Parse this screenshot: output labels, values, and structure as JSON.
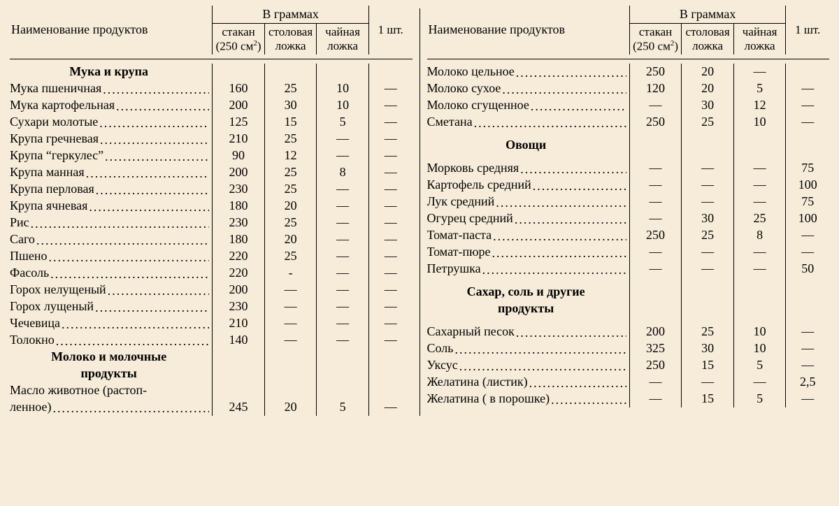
{
  "header": {
    "title_left": "Наименование продуктов",
    "group": "В граммах",
    "col1_line1": "стакан",
    "col1_line2": "(250 см",
    "col1_sup": "2",
    "col1_paren": ")",
    "col2_line1": "столовая",
    "col2_line2": "ложка",
    "col3_line1": "чайная",
    "col3_line2": "ложка",
    "col4": "1 шт."
  },
  "left": [
    {
      "type": "section",
      "label": "Мука и крупа"
    },
    {
      "type": "row",
      "label": "Мука пшеничная",
      "v": [
        "160",
        "25",
        "10",
        "—"
      ]
    },
    {
      "type": "row",
      "label": "Мука картофельная",
      "v": [
        "200",
        "30",
        "10",
        "—"
      ]
    },
    {
      "type": "row",
      "label": "Сухари молотые",
      "v": [
        "125",
        "15",
        "5",
        "—"
      ]
    },
    {
      "type": "row",
      "label": "Крупа гречневая",
      "v": [
        "210",
        "25",
        "—",
        "—"
      ]
    },
    {
      "type": "row",
      "label": "Крупа “геркулес”",
      "v": [
        "90",
        "12",
        "—",
        "—"
      ]
    },
    {
      "type": "row",
      "label": "Крупа манная",
      "v": [
        "200",
        "25",
        "8",
        "—"
      ]
    },
    {
      "type": "row",
      "label": "Крупа перловая",
      "v": [
        "230",
        "25",
        "—",
        "—"
      ]
    },
    {
      "type": "row",
      "label": "Крупа ячневая",
      "v": [
        "180",
        "20",
        "—",
        "—"
      ]
    },
    {
      "type": "row",
      "label": "Рис",
      "v": [
        "230",
        "25",
        "—",
        "—"
      ]
    },
    {
      "type": "row",
      "label": "Саго",
      "v": [
        "180",
        "20",
        "—",
        "—"
      ]
    },
    {
      "type": "row",
      "label": "Пшено",
      "v": [
        "220",
        "25",
        "—",
        "—"
      ]
    },
    {
      "type": "row",
      "label": "Фасоль",
      "v": [
        "220",
        "-",
        "—",
        "—"
      ]
    },
    {
      "type": "row",
      "label": "Горох нелущеный",
      "v": [
        "200",
        "—",
        "—",
        "—"
      ]
    },
    {
      "type": "row",
      "label": "Горох лущеный",
      "v": [
        "230",
        "—",
        "—",
        "—"
      ]
    },
    {
      "type": "row",
      "label": "Чечевица",
      "v": [
        "210",
        "—",
        "—",
        "—"
      ]
    },
    {
      "type": "row",
      "label": "Толокно",
      "v": [
        "140",
        "—",
        "—",
        "—"
      ]
    },
    {
      "type": "section",
      "label": "Молоко и молочные"
    },
    {
      "type": "section",
      "label": "продукты"
    },
    {
      "type": "row-nodots",
      "label": "Масло животное (растоп-",
      "v": [
        "",
        "",
        "",
        ""
      ]
    },
    {
      "type": "row",
      "label": "ленное)",
      "v": [
        "245",
        "20",
        "5",
        "—"
      ]
    }
  ],
  "right": [
    {
      "type": "row",
      "label": "Молоко цельное",
      "v": [
        "250",
        "20",
        "—",
        ""
      ]
    },
    {
      "type": "row",
      "label": "Молоко сухое",
      "v": [
        "120",
        "20",
        "5",
        "—"
      ]
    },
    {
      "type": "row",
      "label": "Молоко сгущенное",
      "v": [
        "—",
        "30",
        "12",
        "—"
      ]
    },
    {
      "type": "row",
      "label": "Сметана",
      "v": [
        "250",
        "25",
        "10",
        "—"
      ]
    },
    {
      "type": "spacer"
    },
    {
      "type": "section",
      "label": "Овощи"
    },
    {
      "type": "spacer"
    },
    {
      "type": "row",
      "label": "Морковь средняя",
      "v": [
        "—",
        "—",
        "—",
        "75"
      ]
    },
    {
      "type": "row",
      "label": "Картофель средний",
      "v": [
        "—",
        "—",
        "—",
        "100"
      ]
    },
    {
      "type": "row",
      "label": "Лук средний",
      "v": [
        "—",
        "—",
        "—",
        "75"
      ]
    },
    {
      "type": "row",
      "label": "Огурец средний",
      "v": [
        "—",
        "30",
        "25",
        "100"
      ]
    },
    {
      "type": "row",
      "label": "Томат-паста",
      "v": [
        "250",
        "25",
        "8",
        "—"
      ]
    },
    {
      "type": "row",
      "label": "Томат-пюре",
      "v": [
        "—",
        "—",
        "—",
        "—"
      ]
    },
    {
      "type": "row",
      "label": "Петрушка",
      "v": [
        "—",
        "—",
        "—",
        "50"
      ]
    },
    {
      "type": "spacer"
    },
    {
      "type": "section",
      "label": "Сахар, соль и другие"
    },
    {
      "type": "section",
      "label": "продукты"
    },
    {
      "type": "spacer"
    },
    {
      "type": "row",
      "label": "Сахарный песок",
      "v": [
        "200",
        "25",
        "10",
        "—"
      ]
    },
    {
      "type": "row",
      "label": "Соль",
      "v": [
        "325",
        "30",
        "10",
        "—"
      ]
    },
    {
      "type": "row",
      "label": "Уксус",
      "v": [
        "250",
        "15",
        "5",
        "—"
      ]
    },
    {
      "type": "row",
      "label": "Желатина (листик)",
      "v": [
        "—",
        "—",
        "—",
        "2,5"
      ]
    },
    {
      "type": "row",
      "label": "Желатина ( в порошке)",
      "v": [
        "—",
        "15",
        "5",
        "—"
      ]
    }
  ]
}
